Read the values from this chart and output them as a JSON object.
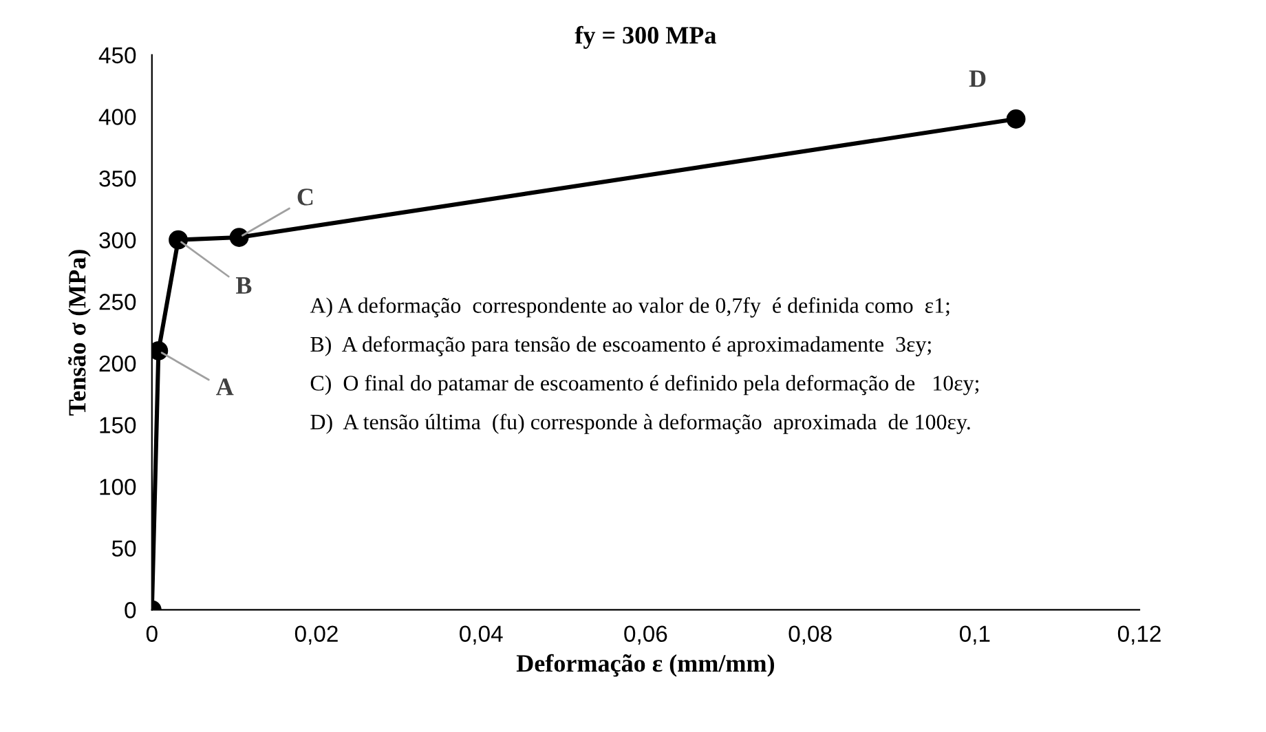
{
  "chart_data": {
    "type": "line",
    "title": "fy = 300 MPa",
    "xlabel": "Deformação ε (mm/mm)",
    "ylabel": "Tensão σ (MPa)",
    "x": [
      0,
      0.0008,
      0.0032,
      0.0106,
      0.105
    ],
    "series": [
      {
        "color": "#000000",
        "values": [
          0,
          210,
          300,
          302,
          398
        ]
      }
    ],
    "marker": "circle",
    "line_style": "solid",
    "grid": false,
    "xlim": [
      0,
      0.12
    ],
    "xticks": [
      {
        "value": 0,
        "label": "0"
      },
      {
        "value": 0.02,
        "label": "0,02"
      },
      {
        "value": 0.04,
        "label": "0,04"
      },
      {
        "value": 0.06,
        "label": "0,06"
      },
      {
        "value": 0.08,
        "label": "0,08"
      },
      {
        "value": 0.1,
        "label": "0,1"
      },
      {
        "value": 0.12,
        "label": "0,12"
      }
    ],
    "ylim": [
      0,
      450
    ],
    "yticks": [
      0,
      50,
      100,
      150,
      200,
      250,
      300,
      350,
      400,
      450
    ],
    "annotations": [
      {
        "text": "A",
        "x": 0.0008,
        "y": 210
      },
      {
        "text": "B",
        "x": 0.0032,
        "y": 300
      },
      {
        "text": "C",
        "x": 0.0106,
        "y": 302
      },
      {
        "text": "D",
        "x": 0.105,
        "y": 398
      },
      "A) A deformação  correspondente ao valor de 0,7fy  é definida como  ε1;",
      "B)  A deformação para tensão de escoamento é aproximadamente  3εy;",
      "C)  O final do patamar de escoamento é definido pela deformação de   10εy;",
      "D)  A tensão última  (fu) corresponde à deformação  aproximada  de 100εy."
    ]
  }
}
